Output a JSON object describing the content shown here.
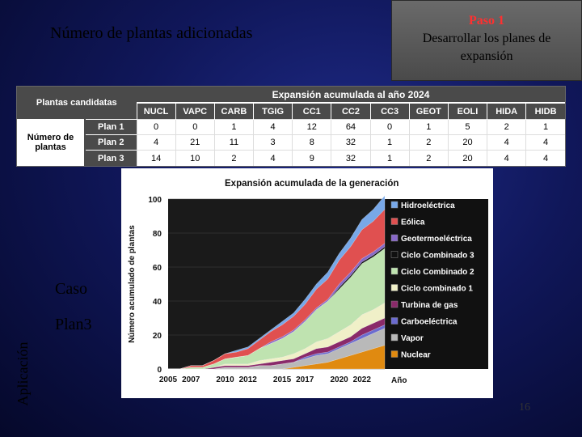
{
  "slide": {
    "title": "Número de plantas adicionadas",
    "step_title": "Paso 1",
    "step_desc": "Desarrollar los planes de expansión",
    "side_label": "Aplicación",
    "case_label": "Caso",
    "case_value": "Plan3",
    "page_number": "16"
  },
  "table": {
    "left_header": "Plantas candidatas",
    "right_header": "Expansión acumulada al año 2024",
    "row_group": "Número de plantas",
    "columns": [
      "NUCL",
      "VAPC",
      "CARB",
      "TGIG",
      "CC1",
      "CC2",
      "CC3",
      "GEOT",
      "EOLI",
      "HIDA",
      "HIDB"
    ],
    "rows": [
      {
        "label": "Plan 1",
        "values": [
          "0",
          "0",
          "1",
          "4",
          "12",
          "64",
          "0",
          "1",
          "5",
          "2",
          "1"
        ]
      },
      {
        "label": "Plan 2",
        "values": [
          "4",
          "21",
          "11",
          "3",
          "8",
          "32",
          "1",
          "2",
          "20",
          "4",
          "4"
        ]
      },
      {
        "label": "Plan 3",
        "values": [
          "14",
          "10",
          "2",
          "4",
          "9",
          "32",
          "1",
          "2",
          "20",
          "4",
          "4"
        ]
      }
    ]
  },
  "chart_data": {
    "type": "area",
    "title": "Expansión acumulada de la generación",
    "xlabel": "Año",
    "ylabel": "Número acumulado de plantas",
    "xlim": [
      2005,
      2024
    ],
    "ylim": [
      0,
      100
    ],
    "yticks": [
      0,
      20,
      40,
      60,
      80,
      100
    ],
    "xticks": [
      "2005",
      "2007",
      "2010",
      "2012",
      "2015",
      "2017",
      "2020",
      "2022"
    ],
    "x": [
      2005,
      2006,
      2007,
      2008,
      2009,
      2010,
      2011,
      2012,
      2013,
      2014,
      2015,
      2016,
      2017,
      2018,
      2019,
      2020,
      2021,
      2022,
      2023,
      2024
    ],
    "legend_position": "right",
    "series": [
      {
        "name": "Nuclear",
        "color": "#e08a10",
        "values": [
          0,
          0,
          0,
          0,
          0,
          0,
          0,
          0,
          0,
          0,
          0,
          1,
          2,
          3,
          4,
          6,
          8,
          10,
          12,
          14
        ]
      },
      {
        "name": "Vapor",
        "color": "#b9b9b9",
        "values": [
          0,
          0,
          0,
          0,
          0,
          1,
          1,
          1,
          2,
          2,
          3,
          3,
          4,
          5,
          5,
          6,
          7,
          8,
          9,
          10
        ]
      },
      {
        "name": "Carboeléctrica",
        "color": "#6b6bd0",
        "values": [
          0,
          0,
          0,
          0,
          0,
          0,
          0,
          0,
          0,
          0,
          0,
          0,
          1,
          1,
          1,
          1,
          1,
          2,
          2,
          2
        ]
      },
      {
        "name": "Turbina de gas",
        "color": "#8a2a6a",
        "values": [
          0,
          0,
          0,
          0,
          1,
          1,
          1,
          1,
          1,
          2,
          2,
          2,
          2,
          3,
          3,
          3,
          3,
          4,
          4,
          4
        ]
      },
      {
        "name": "Ciclo combinado 1",
        "color": "#f0f0c8",
        "values": [
          0,
          0,
          0,
          0,
          0,
          1,
          1,
          1,
          2,
          2,
          2,
          3,
          3,
          4,
          5,
          6,
          7,
          8,
          8,
          9
        ]
      },
      {
        "name": "Ciclo Combinado 2",
        "color": "#bfe3b0",
        "values": [
          0,
          0,
          1,
          1,
          2,
          3,
          4,
          5,
          7,
          9,
          11,
          13,
          16,
          19,
          22,
          25,
          28,
          30,
          31,
          32
        ]
      },
      {
        "name": "Ciclo Combinado 3",
        "color": "#101010",
        "values": [
          0,
          0,
          0,
          0,
          0,
          0,
          0,
          0,
          0,
          0,
          0,
          0,
          0,
          0,
          0,
          1,
          1,
          1,
          1,
          1
        ]
      },
      {
        "name": "Geotermoeléctrica",
        "color": "#8868c8",
        "values": [
          0,
          0,
          0,
          0,
          0,
          0,
          0,
          0,
          0,
          1,
          1,
          1,
          1,
          1,
          1,
          2,
          2,
          2,
          2,
          2
        ]
      },
      {
        "name": "Eólica",
        "color": "#e05050",
        "values": [
          0,
          0,
          1,
          1,
          2,
          3,
          3,
          4,
          5,
          6,
          7,
          8,
          9,
          11,
          12,
          14,
          15,
          17,
          18,
          20
        ]
      },
      {
        "name": "Hidroeléctrica",
        "color": "#78a8e8",
        "values": [
          0,
          0,
          0,
          0,
          0,
          0,
          1,
          1,
          1,
          1,
          2,
          2,
          3,
          3,
          4,
          4,
          5,
          6,
          7,
          8
        ]
      }
    ]
  }
}
